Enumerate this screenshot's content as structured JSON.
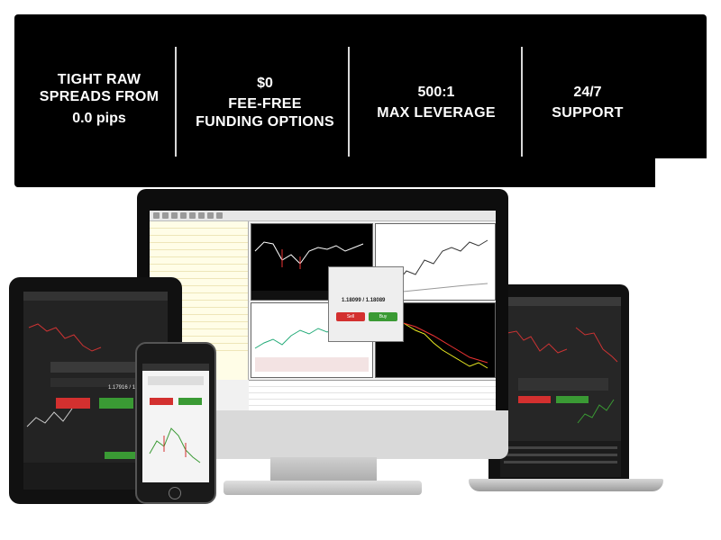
{
  "features": [
    {
      "line1": "TIGHT RAW",
      "line2": "SPREADS FROM",
      "highlight": "0.0 pips"
    },
    {
      "highlight": "$0",
      "line1": "FEE-FREE",
      "line2": "FUNDING OPTIONS"
    },
    {
      "highlight": "500:1",
      "line1": "MAX LEVERAGE"
    },
    {
      "highlight": "24/7",
      "line1": "SUPPORT"
    }
  ],
  "platform": {
    "order_price": "1.18099 / 1.18089",
    "tablet_price": "1.17916 / 1.17946",
    "sell_label": "Sell",
    "buy_label": "Buy"
  },
  "colors": {
    "sell": "#d3302f",
    "buy": "#3a9a34",
    "banner": "#000000"
  }
}
